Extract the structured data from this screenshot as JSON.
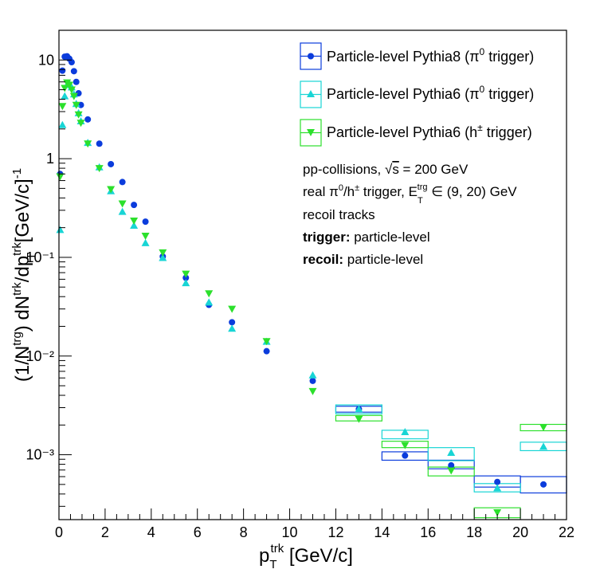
{
  "chart_data": {
    "type": "scatter",
    "xlabel": "p_T^trk [GeV/c]",
    "ylabel": "(1/N^trg) dN^trk/dp_T^trk [GeV/c]^-1",
    "xlim": [
      0,
      22
    ],
    "ylim": [
      0.00022,
      20
    ],
    "yscale": "log",
    "x_ticks": [
      0,
      2,
      4,
      6,
      8,
      10,
      12,
      14,
      16,
      18,
      20,
      22
    ],
    "y_tick_labels": [
      "10",
      "1",
      "10⁻¹",
      "10⁻²",
      "10⁻³"
    ],
    "legend_position": "top-right",
    "series": [
      {
        "name": "Particle-level Pythia8 (π⁰ trigger)",
        "color": "#0b3cdc",
        "marker": "circle",
        "points": [
          [
            0.05,
            0.7
          ],
          [
            0.15,
            7.8
          ],
          [
            0.25,
            10.8
          ],
          [
            0.35,
            10.9
          ],
          [
            0.45,
            10.3
          ],
          [
            0.55,
            9.5
          ],
          [
            0.65,
            7.7
          ],
          [
            0.75,
            6.0
          ],
          [
            0.85,
            4.6
          ],
          [
            0.95,
            3.5
          ],
          [
            1.25,
            2.5
          ],
          [
            1.75,
            1.42
          ],
          [
            2.25,
            0.88
          ],
          [
            2.75,
            0.58
          ],
          [
            3.25,
            0.34
          ],
          [
            3.75,
            0.23
          ],
          [
            4.5,
            0.102
          ],
          [
            5.5,
            0.062
          ],
          [
            6.5,
            0.033
          ],
          [
            7.5,
            0.022
          ],
          [
            9.0,
            0.0112
          ],
          [
            11.0,
            0.0056
          ],
          [
            13.0,
            0.0029
          ],
          [
            15.0,
            0.00098
          ],
          [
            17.0,
            0.00078
          ],
          [
            19.0,
            0.00053
          ],
          [
            21.0,
            0.0005
          ]
        ],
        "boxes": [
          [
            12,
            14,
            0.0027,
            0.0031
          ],
          [
            14,
            16,
            0.00088,
            0.00107
          ],
          [
            16,
            18,
            0.00072,
            0.00088
          ],
          [
            18,
            20,
            0.00047,
            0.00061
          ],
          [
            20,
            22,
            0.00041,
            0.0006
          ]
        ]
      },
      {
        "name": "Particle-level Pythia6 (π⁰ trigger)",
        "color": "#18d5d5",
        "marker": "triangle-up",
        "points": [
          [
            0.05,
            0.19
          ],
          [
            0.15,
            2.2
          ],
          [
            0.25,
            4.3
          ],
          [
            0.35,
            5.6
          ],
          [
            0.45,
            5.8
          ],
          [
            0.55,
            5.3
          ],
          [
            0.65,
            4.5
          ],
          [
            0.75,
            3.6
          ],
          [
            0.85,
            2.9
          ],
          [
            0.95,
            2.4
          ],
          [
            1.25,
            1.45
          ],
          [
            1.75,
            0.82
          ],
          [
            2.25,
            0.47
          ],
          [
            2.75,
            0.29
          ],
          [
            3.25,
            0.21
          ],
          [
            3.75,
            0.14
          ],
          [
            4.5,
            0.099
          ],
          [
            5.5,
            0.055
          ],
          [
            6.5,
            0.035
          ],
          [
            7.5,
            0.019
          ],
          [
            9.0,
            0.014
          ],
          [
            11.0,
            0.0064
          ],
          [
            13.0,
            0.0029
          ],
          [
            15.0,
            0.0017
          ],
          [
            17.0,
            0.00105
          ],
          [
            19.0,
            0.00046
          ],
          [
            21.0,
            0.00121
          ]
        ],
        "boxes": [
          [
            12,
            14,
            0.0026,
            0.0032
          ],
          [
            14,
            16,
            0.00145,
            0.00177
          ],
          [
            16,
            18,
            0.00087,
            0.00118
          ],
          [
            18,
            20,
            0.00042,
            0.00051
          ],
          [
            20,
            22,
            0.0011,
            0.00134
          ]
        ]
      },
      {
        "name": "Particle-level Pythia6 (h± trigger)",
        "color": "#2ce02c",
        "marker": "triangle-down",
        "points": [
          [
            0.05,
            0.66
          ],
          [
            0.15,
            3.4
          ],
          [
            0.25,
            5.2
          ],
          [
            0.35,
            5.9
          ],
          [
            0.45,
            5.6
          ],
          [
            0.55,
            5.0
          ],
          [
            0.65,
            4.3
          ],
          [
            0.75,
            3.5
          ],
          [
            0.85,
            2.8
          ],
          [
            0.95,
            2.3
          ],
          [
            1.25,
            1.42
          ],
          [
            1.75,
            0.8
          ],
          [
            2.25,
            0.49
          ],
          [
            2.75,
            0.35
          ],
          [
            3.25,
            0.235
          ],
          [
            3.75,
            0.165
          ],
          [
            4.5,
            0.112
          ],
          [
            5.5,
            0.068
          ],
          [
            6.5,
            0.043
          ],
          [
            7.5,
            0.03
          ],
          [
            9.0,
            0.0141
          ],
          [
            11.0,
            0.0044
          ],
          [
            13.0,
            0.0023
          ],
          [
            15.0,
            0.00125
          ],
          [
            17.0,
            0.00069
          ],
          [
            19.0,
            0.00026
          ],
          [
            21.0,
            0.0019
          ]
        ],
        "boxes": [
          [
            12,
            14,
            0.0022,
            0.0025
          ],
          [
            14,
            16,
            0.00118,
            0.00137
          ],
          [
            16,
            18,
            0.00061,
            0.00075
          ],
          [
            18,
            20,
            0.00023,
            0.00029
          ],
          [
            20,
            22,
            0.00175,
            0.00203
          ]
        ]
      }
    ],
    "annotations": [
      "pp-collisions, √s = 200 GeV",
      "real π⁰/h± trigger, E_T^trg ∈ (9, 20) GeV",
      "recoil tracks",
      "trigger: particle-level",
      "recoil: particle-level"
    ]
  }
}
